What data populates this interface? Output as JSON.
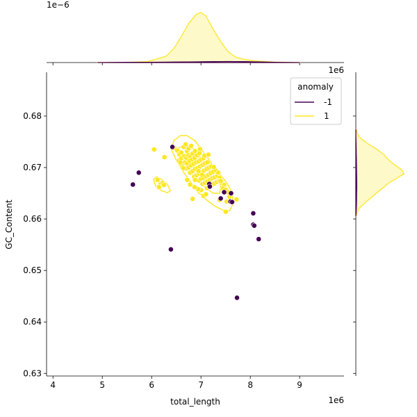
{
  "chart_data": {
    "type": "scatter",
    "xlabel": "total_length",
    "ylabel": "GC_Content",
    "x_offset_label": "1e6",
    "y_offset_label": "",
    "top_marginal_offset_label": "1e−6",
    "right_marginal_offset_label": "1e6",
    "xlim": [
      3.87,
      9.9
    ],
    "ylim": [
      0.6295,
      0.6885
    ],
    "xticks": [
      4,
      5,
      6,
      7,
      8,
      9
    ],
    "xtick_labels": [
      "4",
      "5",
      "6",
      "7",
      "8",
      "9"
    ],
    "yticks": [
      0.63,
      0.64,
      0.65,
      0.66,
      0.67,
      0.68
    ],
    "ytick_labels": [
      "0.63",
      "0.64",
      "0.65",
      "0.66",
      "0.67",
      "0.68"
    ],
    "legend": {
      "title": "anomaly",
      "placement": "top-right",
      "entries": [
        {
          "label": "-1",
          "color": "#440154"
        },
        {
          "label": "1",
          "color": "#fde725"
        }
      ]
    },
    "series": [
      {
        "name": "-1",
        "color": "#440154",
        "points": [
          [
            5.62,
            0.6667
          ],
          [
            5.74,
            0.669
          ],
          [
            6.42,
            0.674
          ],
          [
            6.39,
            0.6541
          ],
          [
            7.17,
            0.6668
          ],
          [
            7.18,
            0.6663
          ],
          [
            7.6,
            0.6634
          ],
          [
            7.63,
            0.6633
          ],
          [
            7.73,
            0.6447
          ],
          [
            8.06,
            0.6611
          ],
          [
            8.06,
            0.6589
          ],
          [
            8.08,
            0.6587
          ],
          [
            8.17,
            0.6561
          ],
          [
            7.61,
            0.665
          ],
          [
            7.4,
            0.664
          ],
          [
            7.47,
            0.6652
          ]
        ]
      },
      {
        "name": "1",
        "color": "#fde725",
        "points": [
          [
            6.05,
            0.6735
          ],
          [
            6.26,
            0.672
          ],
          [
            6.46,
            0.6738
          ],
          [
            6.52,
            0.6733
          ],
          [
            6.56,
            0.6726
          ],
          [
            6.6,
            0.6729
          ],
          [
            6.65,
            0.674
          ],
          [
            6.69,
            0.6745
          ],
          [
            6.72,
            0.6732
          ],
          [
            6.75,
            0.6737
          ],
          [
            6.8,
            0.6742
          ],
          [
            6.55,
            0.6713
          ],
          [
            6.6,
            0.6718
          ],
          [
            6.66,
            0.6722
          ],
          [
            6.7,
            0.6719
          ],
          [
            6.74,
            0.6724
          ],
          [
            6.78,
            0.6721
          ],
          [
            6.83,
            0.6727
          ],
          [
            6.88,
            0.6732
          ],
          [
            6.62,
            0.6705
          ],
          [
            6.68,
            0.671
          ],
          [
            6.72,
            0.6708
          ],
          [
            6.77,
            0.6713
          ],
          [
            6.82,
            0.6716
          ],
          [
            6.87,
            0.6719
          ],
          [
            6.92,
            0.6724
          ],
          [
            6.97,
            0.6728
          ],
          [
            6.7,
            0.6698
          ],
          [
            6.75,
            0.67
          ],
          [
            6.8,
            0.6704
          ],
          [
            6.85,
            0.6707
          ],
          [
            6.9,
            0.671
          ],
          [
            6.95,
            0.6712
          ],
          [
            7.0,
            0.6715
          ],
          [
            7.05,
            0.6718
          ],
          [
            6.78,
            0.669
          ],
          [
            6.83,
            0.6693
          ],
          [
            6.88,
            0.6697
          ],
          [
            6.93,
            0.6699
          ],
          [
            6.98,
            0.6702
          ],
          [
            7.03,
            0.6705
          ],
          [
            7.08,
            0.6708
          ],
          [
            7.13,
            0.671
          ],
          [
            6.86,
            0.6682
          ],
          [
            6.91,
            0.6685
          ],
          [
            6.96,
            0.6688
          ],
          [
            7.01,
            0.6691
          ],
          [
            7.06,
            0.6694
          ],
          [
            7.11,
            0.6697
          ],
          [
            7.16,
            0.67
          ],
          [
            7.21,
            0.6702
          ],
          [
            6.95,
            0.6675
          ],
          [
            7.0,
            0.6678
          ],
          [
            7.05,
            0.668
          ],
          [
            7.1,
            0.6683
          ],
          [
            7.15,
            0.6686
          ],
          [
            7.2,
            0.6689
          ],
          [
            7.25,
            0.6692
          ],
          [
            7.3,
            0.6694
          ],
          [
            7.03,
            0.6668
          ],
          [
            7.08,
            0.667
          ],
          [
            7.13,
            0.6673
          ],
          [
            7.18,
            0.6676
          ],
          [
            7.23,
            0.6679
          ],
          [
            7.28,
            0.6681
          ],
          [
            7.33,
            0.6684
          ],
          [
            7.38,
            0.668
          ],
          [
            7.12,
            0.666
          ],
          [
            7.17,
            0.6663
          ],
          [
            7.22,
            0.6666
          ],
          [
            7.27,
            0.6669
          ],
          [
            7.32,
            0.6672
          ],
          [
            7.37,
            0.6674
          ],
          [
            7.42,
            0.667
          ],
          [
            7.47,
            0.6666
          ],
          [
            7.0,
            0.6656
          ],
          [
            7.05,
            0.6645
          ],
          [
            7.1,
            0.6648
          ],
          [
            6.94,
            0.6658
          ],
          [
            6.87,
            0.6662
          ],
          [
            7.45,
            0.666
          ],
          [
            7.5,
            0.6657
          ],
          [
            7.55,
            0.6652
          ],
          [
            7.58,
            0.6643
          ],
          [
            7.52,
            0.6634
          ],
          [
            7.38,
            0.6637
          ],
          [
            7.72,
            0.6638
          ],
          [
            7.5,
            0.6614
          ],
          [
            6.78,
            0.6667
          ],
          [
            6.72,
            0.6676
          ],
          [
            6.83,
            0.6639
          ],
          [
            6.12,
            0.6676
          ],
          [
            6.18,
            0.6668
          ],
          [
            6.15,
            0.6662
          ],
          [
            6.22,
            0.667
          ],
          [
            6.25,
            0.6666
          ],
          [
            6.95,
            0.6693
          ],
          [
            7.02,
            0.6686
          ],
          [
            6.88,
            0.6676
          ],
          [
            7.26,
            0.6701
          ],
          [
            7.35,
            0.669
          ],
          [
            6.64,
            0.6699
          ],
          [
            7.4,
            0.6674
          ],
          [
            7.07,
            0.6723
          ],
          [
            6.58,
            0.671
          ],
          [
            6.98,
            0.6736
          ],
          [
            7.15,
            0.6725
          ]
        ]
      }
    ],
    "kde_contours": [
      {
        "color": "#fde725",
        "points": [
          [
            6.45,
            0.6752
          ],
          [
            6.58,
            0.6762
          ],
          [
            6.72,
            0.6762
          ],
          [
            6.88,
            0.6752
          ],
          [
            7.05,
            0.673
          ],
          [
            7.22,
            0.6707
          ],
          [
            7.38,
            0.6688
          ],
          [
            7.52,
            0.667
          ],
          [
            7.63,
            0.6652
          ],
          [
            7.65,
            0.663
          ],
          [
            7.58,
            0.6616
          ],
          [
            7.45,
            0.6617
          ],
          [
            7.28,
            0.6625
          ],
          [
            7.1,
            0.6638
          ],
          [
            6.94,
            0.6652
          ],
          [
            6.8,
            0.667
          ],
          [
            6.64,
            0.6692
          ],
          [
            6.49,
            0.6716
          ],
          [
            6.4,
            0.6735
          ]
        ]
      },
      {
        "color": "#fde725",
        "points": [
          [
            6.55,
            0.6738
          ],
          [
            6.7,
            0.6745
          ],
          [
            6.85,
            0.6736
          ],
          [
            7.0,
            0.6718
          ],
          [
            7.15,
            0.6698
          ],
          [
            7.3,
            0.6681
          ],
          [
            7.4,
            0.6664
          ],
          [
            7.38,
            0.665
          ],
          [
            7.25,
            0.665
          ],
          [
            7.1,
            0.666
          ],
          [
            6.95,
            0.6674
          ],
          [
            6.8,
            0.669
          ],
          [
            6.66,
            0.6706
          ],
          [
            6.54,
            0.6723
          ]
        ]
      },
      {
        "color": "#fde725",
        "points": [
          [
            6.78,
            0.6728
          ],
          [
            6.92,
            0.6722
          ],
          [
            7.06,
            0.6706
          ],
          [
            7.18,
            0.669
          ],
          [
            7.24,
            0.6676
          ],
          [
            7.14,
            0.6672
          ],
          [
            7.0,
            0.6682
          ],
          [
            6.86,
            0.6697
          ],
          [
            6.76,
            0.6712
          ]
        ]
      },
      {
        "color": "#fde725",
        "points": [
          [
            6.04,
            0.6677
          ],
          [
            6.1,
            0.6682
          ],
          [
            6.2,
            0.6677
          ],
          [
            6.32,
            0.6667
          ],
          [
            6.38,
            0.6655
          ],
          [
            6.32,
            0.6651
          ],
          [
            6.2,
            0.6655
          ],
          [
            6.08,
            0.6664
          ]
        ]
      }
    ],
    "marginal_x": {
      "color_1": "#fde725",
      "color_neg1": "#440154",
      "x": [
        4.9,
        5.5,
        5.9,
        6.1,
        6.3,
        6.45,
        6.6,
        6.75,
        6.9,
        7.0,
        7.1,
        7.25,
        7.4,
        7.55,
        7.7,
        7.9,
        8.1,
        8.5,
        9.0
      ],
      "density_1": [
        0.0,
        0.004,
        0.02,
        0.07,
        0.13,
        0.28,
        0.52,
        0.78,
        0.96,
        1.0,
        0.93,
        0.66,
        0.42,
        0.22,
        0.11,
        0.06,
        0.03,
        0.01,
        0.0
      ],
      "density_neg1": [
        0.0,
        0.004,
        0.006,
        0.007,
        0.008,
        0.01,
        0.012,
        0.013,
        0.014,
        0.015,
        0.016,
        0.018,
        0.02,
        0.021,
        0.02,
        0.018,
        0.014,
        0.006,
        0.0
      ]
    },
    "marginal_y": {
      "color_1": "#fde725",
      "color_neg1": "#440154",
      "y": [
        0.6605,
        0.662,
        0.6635,
        0.665,
        0.666,
        0.667,
        0.668,
        0.6688,
        0.6695,
        0.6705,
        0.6715,
        0.6725,
        0.6735,
        0.6748,
        0.676,
        0.6775
      ],
      "density_1": [
        0.0,
        0.06,
        0.23,
        0.42,
        0.55,
        0.68,
        0.86,
        0.99,
        0.95,
        0.8,
        0.67,
        0.58,
        0.44,
        0.22,
        0.06,
        0.0
      ],
      "density_neg1": [
        0.0,
        0.01,
        0.014,
        0.016,
        0.018,
        0.018,
        0.017,
        0.016,
        0.015,
        0.013,
        0.011,
        0.009,
        0.007,
        0.004,
        0.002,
        0.0
      ]
    }
  }
}
